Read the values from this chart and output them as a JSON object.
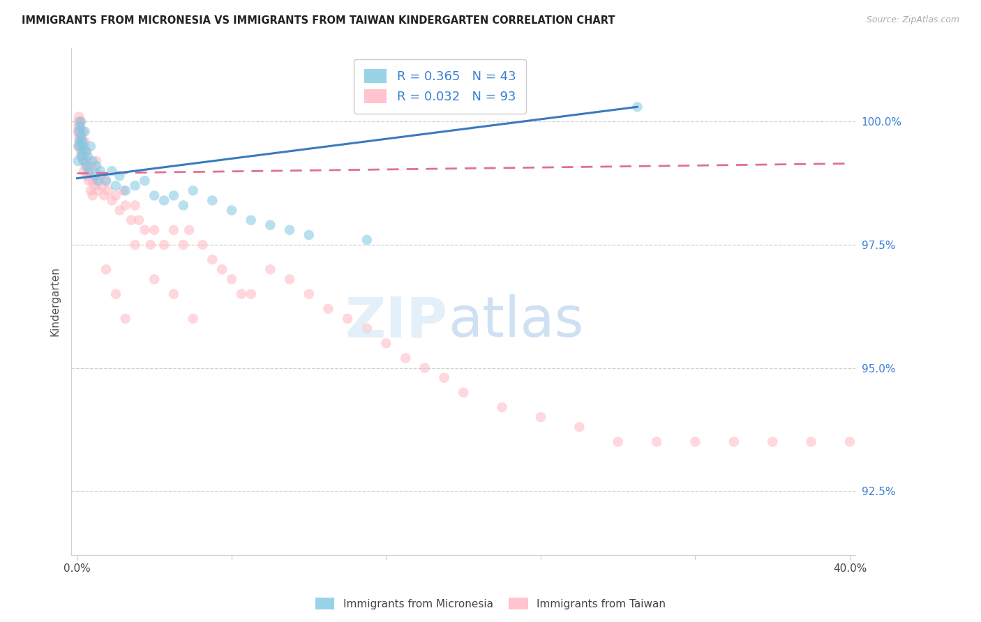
{
  "title": "IMMIGRANTS FROM MICRONESIA VS IMMIGRANTS FROM TAIWAN KINDERGARTEN CORRELATION CHART",
  "source": "Source: ZipAtlas.com",
  "ylabel": "Kindergarten",
  "yticks": [
    92.5,
    95.0,
    97.5,
    100.0
  ],
  "ytick_labels": [
    "92.5%",
    "95.0%",
    "97.5%",
    "100.0%"
  ],
  "xlim_min": -0.3,
  "xlim_max": 40.3,
  "ylim_min": 91.2,
  "ylim_max": 101.5,
  "legend_blue_r": "0.365",
  "legend_blue_n": "43",
  "legend_pink_r": "0.032",
  "legend_pink_n": "93",
  "blue_color": "#7ec8e3",
  "pink_color": "#ffb6c1",
  "blue_line_color": "#3a7abf",
  "pink_line_color": "#e07090",
  "blue_marker_edge": "#5aaad0",
  "pink_marker_edge": "#f090a8",
  "mic_x": [
    0.05,
    0.08,
    0.1,
    0.12,
    0.15,
    0.18,
    0.2,
    0.22,
    0.25,
    0.28,
    0.3,
    0.35,
    0.4,
    0.45,
    0.5,
    0.55,
    0.6,
    0.7,
    0.8,
    0.9,
    1.0,
    1.1,
    1.2,
    1.5,
    1.8,
    2.0,
    2.2,
    2.5,
    3.0,
    3.5,
    4.0,
    4.5,
    5.0,
    5.5,
    6.0,
    7.0,
    8.0,
    9.0,
    10.0,
    11.0,
    12.0,
    15.0,
    29.0
  ],
  "mic_y": [
    99.2,
    99.5,
    99.8,
    99.6,
    99.9,
    100.0,
    99.7,
    99.4,
    99.3,
    99.6,
    99.5,
    99.2,
    99.8,
    99.4,
    99.1,
    99.3,
    99.0,
    99.5,
    99.2,
    98.9,
    99.1,
    98.8,
    99.0,
    98.8,
    99.0,
    98.7,
    98.9,
    98.6,
    98.7,
    98.8,
    98.5,
    98.4,
    98.5,
    98.3,
    98.6,
    98.4,
    98.2,
    98.0,
    97.9,
    97.8,
    97.7,
    97.6,
    100.3
  ],
  "tai_x": [
    0.03,
    0.05,
    0.07,
    0.08,
    0.1,
    0.1,
    0.12,
    0.13,
    0.15,
    0.15,
    0.18,
    0.2,
    0.2,
    0.22,
    0.25,
    0.25,
    0.28,
    0.3,
    0.3,
    0.32,
    0.35,
    0.35,
    0.4,
    0.4,
    0.45,
    0.5,
    0.5,
    0.55,
    0.6,
    0.6,
    0.7,
    0.7,
    0.8,
    0.8,
    0.9,
    0.9,
    1.0,
    1.0,
    1.1,
    1.2,
    1.3,
    1.4,
    1.5,
    1.6,
    1.8,
    2.0,
    2.2,
    2.4,
    2.5,
    2.8,
    3.0,
    3.2,
    3.5,
    3.8,
    4.0,
    4.5,
    5.0,
    5.5,
    5.8,
    6.5,
    7.0,
    7.5,
    8.0,
    8.5,
    9.0,
    10.0,
    11.0,
    12.0,
    13.0,
    14.0,
    15.0,
    16.0,
    17.0,
    18.0,
    19.0,
    20.0,
    22.0,
    24.0,
    26.0,
    28.0,
    30.0,
    32.0,
    34.0,
    36.0,
    38.0,
    40.0,
    1.5,
    2.0,
    2.5,
    3.0,
    4.0,
    5.0,
    6.0
  ],
  "tai_y": [
    99.8,
    100.0,
    99.5,
    99.9,
    99.7,
    100.1,
    99.6,
    99.8,
    99.5,
    100.0,
    99.3,
    99.7,
    100.0,
    99.5,
    99.8,
    99.3,
    99.6,
    99.4,
    99.8,
    99.2,
    99.5,
    99.0,
    99.3,
    99.6,
    99.1,
    99.4,
    98.9,
    99.2,
    99.0,
    98.8,
    98.6,
    99.1,
    98.5,
    98.8,
    98.7,
    99.0,
    98.8,
    99.2,
    98.6,
    98.9,
    98.7,
    98.5,
    98.8,
    98.6,
    98.4,
    98.5,
    98.2,
    98.6,
    98.3,
    98.0,
    98.3,
    98.0,
    97.8,
    97.5,
    97.8,
    97.5,
    97.8,
    97.5,
    97.8,
    97.5,
    97.2,
    97.0,
    96.8,
    96.5,
    96.5,
    97.0,
    96.8,
    96.5,
    96.2,
    96.0,
    95.8,
    95.5,
    95.2,
    95.0,
    94.8,
    94.5,
    94.2,
    94.0,
    93.8,
    93.5,
    93.5,
    93.5,
    93.5,
    93.5,
    93.5,
    93.5,
    97.0,
    96.5,
    96.0,
    97.5,
    96.8,
    96.5,
    96.0
  ],
  "blue_line_x0": 0.0,
  "blue_line_y0": 98.85,
  "blue_line_x1": 29.0,
  "blue_line_y1": 100.3,
  "pink_line_x0": 0.0,
  "pink_line_y0": 98.95,
  "pink_line_x1": 40.0,
  "pink_line_y1": 99.15
}
